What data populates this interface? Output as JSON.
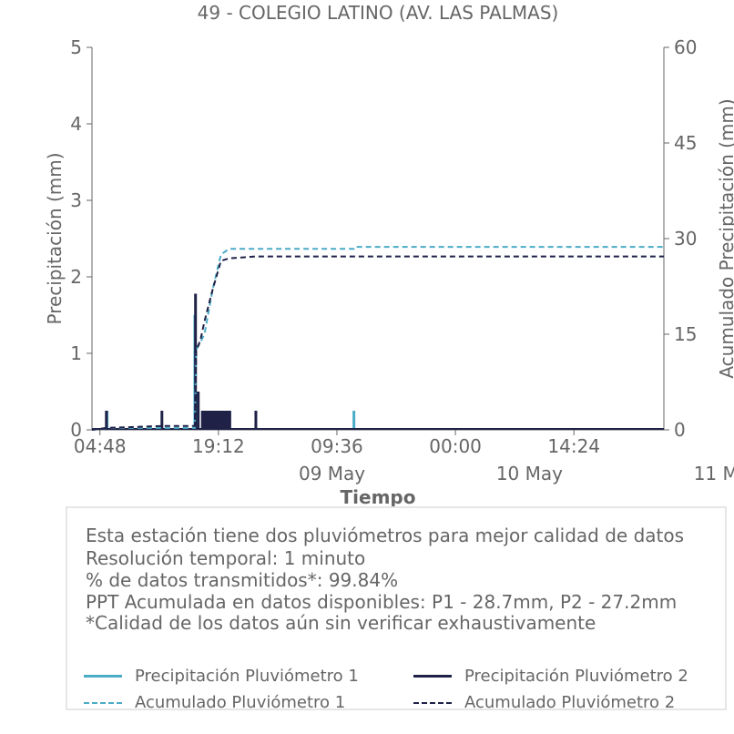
{
  "chart_data": {
    "type": "line",
    "title": "49 - COLEGIO LATINO (AV. LAS PALMAS)",
    "xlabel": "Tiempo",
    "ylabel_left": "Precipitación (mm)",
    "ylabel_right": "Acumulado Precipitación (mm)",
    "x_range": [
      "2024-05-08T03:50",
      "2024-05-11T01:20"
    ],
    "ylim_left": [
      0,
      5
    ],
    "ylim_right": [
      0,
      60
    ],
    "x_ticks": [
      {
        "t": "2024-05-08T04:48",
        "label": "04:48"
      },
      {
        "t": "2024-05-08T19:12",
        "label": "19:12"
      },
      {
        "t": "2024-05-09T09:36",
        "label": "09:36"
      },
      {
        "t": "2024-05-10T00:00",
        "label": "00:00"
      },
      {
        "t": "2024-05-10T14:24",
        "label": "14:24"
      }
    ],
    "date_labels": [
      {
        "t": "2024-05-09T09:00",
        "label": "09 May"
      },
      {
        "t": "2024-05-10T09:00",
        "label": "10 May"
      },
      {
        "t": "2024-05-11T09:00",
        "label": "11 May"
      }
    ],
    "y_ticks_left": [
      0,
      1,
      2,
      3,
      4,
      5
    ],
    "y_ticks_right": [
      0,
      15,
      30,
      45,
      60
    ],
    "grid": false,
    "series": [
      {
        "name": "Precipitación Pluviómetro 1",
        "axis": "left",
        "style": "solid",
        "color": "#4bacc6",
        "points": [
          [
            "2024-05-08T05:40",
            0.25
          ],
          [
            "2024-05-08T16:20",
            1.5
          ],
          [
            "2024-05-08T16:40",
            0.5
          ],
          [
            "2024-05-08T18:00",
            0.25
          ],
          [
            "2024-05-08T19:00",
            0.25
          ],
          [
            "2024-05-08T20:30",
            0.25
          ],
          [
            "2024-05-09T11:40",
            0.25
          ]
        ]
      },
      {
        "name": "Precipitación Pluviómetro 2",
        "axis": "left",
        "style": "solid",
        "color": "#1f2147",
        "points": [
          [
            "2024-05-08T05:35",
            0.25
          ],
          [
            "2024-05-08T12:20",
            0.25
          ],
          [
            "2024-05-08T16:25",
            1.78
          ],
          [
            "2024-05-08T16:45",
            0.5
          ],
          [
            "2024-05-08T17:15",
            0.25
          ],
          [
            "2024-05-08T17:40",
            0.25
          ],
          [
            "2024-05-08T18:05",
            0.25
          ],
          [
            "2024-05-08T18:30",
            0.25
          ],
          [
            "2024-05-08T18:55",
            0.25
          ],
          [
            "2024-05-08T19:20",
            0.25
          ],
          [
            "2024-05-08T19:45",
            0.25
          ],
          [
            "2024-05-08T20:10",
            0.25
          ],
          [
            "2024-05-08T20:35",
            0.25
          ],
          [
            "2024-05-08T23:45",
            0.25
          ]
        ]
      },
      {
        "name": "Acumulado Pluviómetro 1",
        "axis": "right",
        "style": "dashed",
        "color": "#4bacc6",
        "points": [
          [
            "2024-05-08T03:50",
            0
          ],
          [
            "2024-05-08T05:40",
            0.3
          ],
          [
            "2024-05-08T16:20",
            0.3
          ],
          [
            "2024-05-08T16:30",
            12.5
          ],
          [
            "2024-05-08T17:30",
            15
          ],
          [
            "2024-05-08T18:30",
            22
          ],
          [
            "2024-05-08T19:30",
            27.5
          ],
          [
            "2024-05-08T20:30",
            28.4
          ],
          [
            "2024-05-09T11:40",
            28.4
          ],
          [
            "2024-05-09T11:45",
            28.7
          ],
          [
            "2024-05-11T01:20",
            28.7
          ]
        ]
      },
      {
        "name": "Acumulado Pluviómetro 2",
        "axis": "right",
        "style": "dashed",
        "color": "#1f2147",
        "points": [
          [
            "2024-05-08T03:50",
            0
          ],
          [
            "2024-05-08T05:35",
            0.3
          ],
          [
            "2024-05-08T12:20",
            0.6
          ],
          [
            "2024-05-08T16:20",
            0.6
          ],
          [
            "2024-05-08T16:30",
            12.5
          ],
          [
            "2024-05-08T17:00",
            14
          ],
          [
            "2024-05-08T17:30",
            17
          ],
          [
            "2024-05-08T18:30",
            22
          ],
          [
            "2024-05-08T19:30",
            26.5
          ],
          [
            "2024-05-08T20:30",
            26.9
          ],
          [
            "2024-05-08T23:45",
            27.2
          ],
          [
            "2024-05-11T01:20",
            27.2
          ]
        ]
      }
    ]
  },
  "info": {
    "lines": [
      "Esta estación tiene dos pluviómetros para mejor calidad de datos",
      "Resolución temporal: 1 minuto",
      "% de datos transmitidos*: 99.84%",
      "PPT Acumulada en datos disponibles: P1 - 28.7mm, P2 - 27.2mm",
      "*Calidad de los datos aún sin verificar exhaustivamente"
    ]
  },
  "legend": [
    {
      "label": "Precipitación Pluviómetro 1",
      "color": "#4bacc6",
      "style": "solid"
    },
    {
      "label": "Precipitación Pluviómetro 2",
      "color": "#1f2147",
      "style": "solid"
    },
    {
      "label": "Acumulado Pluviómetro 1",
      "color": "#4bacc6",
      "style": "dashed"
    },
    {
      "label": "Acumulado Pluviómetro 2",
      "color": "#1f2147",
      "style": "dashed"
    }
  ]
}
